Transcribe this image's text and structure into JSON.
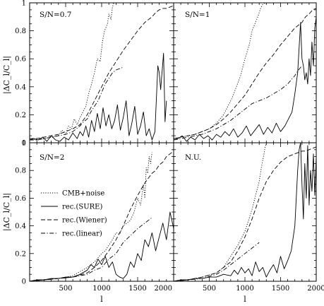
{
  "chart_data": [
    {
      "type": "line",
      "panel": "top-left",
      "label": "S/N=0.7",
      "xlim": [
        0,
        2000
      ],
      "ylim": [
        0,
        1
      ],
      "ylabel": "|ΔC_l/C_l|",
      "xticks": [],
      "yticks": [
        "0",
        "0.2",
        "0.4",
        "0.6",
        "0.8",
        "1"
      ],
      "series": [
        {
          "name": "CMB+noise",
          "style": "dotted",
          "x": [
            0,
            100,
            200,
            300,
            400,
            450,
            500,
            540,
            580,
            620,
            660,
            700,
            740,
            780,
            820,
            860,
            900,
            940,
            980,
            1010,
            1040,
            1080,
            1100,
            1130,
            1150,
            1170
          ],
          "y": [
            0.03,
            0.02,
            0.03,
            0.04,
            0.05,
            0.09,
            0.06,
            0.12,
            0.1,
            0.17,
            0.13,
            0.18,
            0.22,
            0.26,
            0.35,
            0.42,
            0.5,
            0.6,
            0.58,
            0.72,
            0.8,
            0.85,
            0.92,
            0.88,
            0.97,
            1.0
          ]
        },
        {
          "name": "rec.(SURE)",
          "style": "solid",
          "x": [
            0,
            60,
            120,
            180,
            240,
            300,
            360,
            420,
            480,
            540,
            600,
            660,
            700,
            740,
            780,
            820,
            860,
            900,
            940,
            980,
            1020,
            1060,
            1100,
            1140,
            1180,
            1220,
            1260,
            1300,
            1340,
            1380,
            1420,
            1460,
            1500,
            1540,
            1580,
            1620,
            1660,
            1700,
            1740,
            1780,
            1800,
            1820,
            1860,
            1880,
            1900
          ],
          "y": [
            0.02,
            0.03,
            0.02,
            0.04,
            0.01,
            0.05,
            0.02,
            0.01,
            0.04,
            0.02,
            0.07,
            0.03,
            0.08,
            0.05,
            0.12,
            0.04,
            0.16,
            0.08,
            0.21,
            0.1,
            0.25,
            0.12,
            0.2,
            0.1,
            0.16,
            0.27,
            0.09,
            0.18,
            0.3,
            0.05,
            0.14,
            0.26,
            0.06,
            0.12,
            0.22,
            0.05,
            0.1,
            0.02,
            0.08,
            0.55,
            0.5,
            0.38,
            0.64,
            0.15,
            0.3
          ]
        },
        {
          "name": "rec.(Wiener)",
          "style": "dashed",
          "x": [
            0,
            100,
            200,
            300,
            400,
            500,
            600,
            700,
            800,
            900,
            1000,
            1100,
            1200,
            1300,
            1400,
            1500,
            1600,
            1700,
            1750,
            1800,
            1850,
            1900,
            1950,
            2000
          ],
          "y": [
            0.03,
            0.03,
            0.04,
            0.05,
            0.06,
            0.08,
            0.1,
            0.13,
            0.2,
            0.3,
            0.4,
            0.5,
            0.58,
            0.66,
            0.73,
            0.8,
            0.86,
            0.9,
            0.93,
            0.95,
            0.96,
            0.96,
            0.97,
            0.98
          ]
        },
        {
          "name": "rec.(linear)",
          "style": "dashdot",
          "x": [
            0,
            100,
            200,
            300,
            400,
            500,
            600,
            650,
            700,
            750,
            800,
            850,
            900,
            950,
            1000,
            1050,
            1100,
            1150,
            1200,
            1250,
            1300
          ],
          "y": [
            0.02,
            0.02,
            0.03,
            0.04,
            0.05,
            0.06,
            0.08,
            0.1,
            0.12,
            0.15,
            0.17,
            0.22,
            0.26,
            0.3,
            0.36,
            0.42,
            0.46,
            0.5,
            0.52,
            0.53,
            0.54
          ]
        }
      ]
    },
    {
      "type": "line",
      "panel": "top-right",
      "label": "S/N=1",
      "xlim": [
        0,
        2000
      ],
      "ylim": [
        0,
        1
      ],
      "xticks": [],
      "yticks": [],
      "series": [
        {
          "name": "CMB+noise",
          "style": "dotted",
          "x": [
            0,
            100,
            200,
            300,
            400,
            500,
            600,
            700,
            760,
            820,
            880,
            940,
            1000,
            1060,
            1100,
            1140,
            1180,
            1220,
            1250,
            1280
          ],
          "y": [
            0.03,
            0.04,
            0.05,
            0.06,
            0.08,
            0.1,
            0.14,
            0.2,
            0.26,
            0.32,
            0.4,
            0.48,
            0.6,
            0.7,
            0.8,
            0.85,
            0.9,
            0.96,
            0.99,
            1.0
          ]
        },
        {
          "name": "rec.(SURE)",
          "style": "solid",
          "x": [
            0,
            60,
            120,
            180,
            240,
            300,
            360,
            420,
            480,
            540,
            600,
            660,
            720,
            780,
            840,
            900,
            960,
            1020,
            1080,
            1140,
            1200,
            1260,
            1320,
            1380,
            1440,
            1500,
            1560,
            1620,
            1660,
            1700,
            1740,
            1780,
            1800,
            1820,
            1840,
            1860,
            1880,
            1900,
            1920,
            1940,
            1960,
            1980,
            2000
          ],
          "y": [
            0.02,
            0.03,
            0.05,
            0.01,
            0.04,
            0.02,
            0.06,
            0.03,
            0.05,
            0.02,
            0.06,
            0.04,
            0.08,
            0.05,
            0.1,
            0.04,
            0.07,
            0.12,
            0.05,
            0.09,
            0.13,
            0.06,
            0.11,
            0.07,
            0.14,
            0.08,
            0.12,
            0.18,
            0.22,
            0.35,
            0.5,
            0.86,
            0.6,
            0.55,
            0.45,
            0.5,
            0.42,
            0.6,
            0.48,
            0.72,
            0.55,
            0.82,
            0.9
          ]
        },
        {
          "name": "rec.(Wiener)",
          "style": "dashed",
          "x": [
            0,
            100,
            200,
            300,
            400,
            500,
            600,
            700,
            800,
            900,
            1000,
            1100,
            1200,
            1300,
            1400,
            1500,
            1600,
            1700,
            1800,
            1850,
            1900,
            1950,
            2000
          ],
          "y": [
            0.03,
            0.04,
            0.05,
            0.06,
            0.08,
            0.1,
            0.13,
            0.17,
            0.22,
            0.28,
            0.34,
            0.42,
            0.5,
            0.57,
            0.63,
            0.7,
            0.76,
            0.82,
            0.86,
            0.9,
            0.92,
            0.95,
            0.96
          ]
        },
        {
          "name": "rec.(linear)",
          "style": "dashdot",
          "x": [
            0,
            100,
            200,
            300,
            400,
            500,
            600,
            700,
            800,
            900,
            1000,
            1100,
            1200,
            1300,
            1400,
            1500,
            1600,
            1700,
            1750,
            1800
          ],
          "y": [
            0.02,
            0.03,
            0.04,
            0.05,
            0.06,
            0.08,
            0.1,
            0.13,
            0.16,
            0.2,
            0.24,
            0.28,
            0.3,
            0.32,
            0.35,
            0.38,
            0.42,
            0.48,
            0.52,
            0.55
          ]
        }
      ]
    },
    {
      "type": "line",
      "panel": "bottom-left",
      "label": "S/N=2",
      "xlim": [
        0,
        2000
      ],
      "ylim": [
        0,
        1
      ],
      "xlabel": "l",
      "ylabel": "|ΔC_l/C_l|",
      "xticks": [
        "500",
        "1000",
        "1500",
        "2000"
      ],
      "yticks": [
        "0",
        "0.2",
        "0.4",
        "0.6",
        "0.8",
        "1"
      ],
      "series": [
        {
          "name": "CMB+noise",
          "style": "dotted",
          "x": [
            0,
            200,
            400,
            600,
            800,
            900,
            1000,
            1050,
            1100,
            1150,
            1200,
            1250,
            1300,
            1350,
            1400,
            1450,
            1500,
            1540,
            1580,
            1600,
            1620,
            1640,
            1660,
            1680,
            1700
          ],
          "y": [
            0.0,
            0.01,
            0.02,
            0.04,
            0.1,
            0.14,
            0.2,
            0.22,
            0.26,
            0.3,
            0.35,
            0.34,
            0.4,
            0.42,
            0.44,
            0.5,
            0.6,
            0.55,
            0.7,
            0.6,
            0.82,
            0.78,
            0.9,
            0.85,
            0.93
          ]
        },
        {
          "name": "rec.(SURE)",
          "style": "solid",
          "x": [
            0,
            100,
            200,
            300,
            400,
            500,
            600,
            700,
            800,
            850,
            900,
            950,
            1000,
            1050,
            1100,
            1150,
            1200,
            1250,
            1300,
            1350,
            1400,
            1450,
            1500,
            1550,
            1600,
            1650,
            1700,
            1750,
            1800,
            1850,
            1900,
            1950,
            2000
          ],
          "y": [
            0.0,
            0.01,
            0.01,
            0.02,
            0.02,
            0.03,
            0.03,
            0.05,
            0.08,
            0.12,
            0.1,
            0.16,
            0.12,
            0.18,
            0.1,
            0.14,
            0.05,
            0.03,
            0.02,
            0.05,
            0.14,
            0.1,
            0.2,
            0.15,
            0.3,
            0.25,
            0.35,
            0.22,
            0.32,
            0.42,
            0.3,
            0.5,
            0.38
          ]
        },
        {
          "name": "rec.(Wiener)",
          "style": "dashed",
          "x": [
            0,
            200,
            400,
            600,
            800,
            900,
            1000,
            1100,
            1200,
            1300,
            1400,
            1500,
            1600,
            1700,
            1750,
            1800,
            1850,
            1900,
            1950,
            2000
          ],
          "y": [
            0.0,
            0.01,
            0.02,
            0.03,
            0.06,
            0.1,
            0.15,
            0.22,
            0.3,
            0.4,
            0.52,
            0.62,
            0.71,
            0.78,
            0.8,
            0.84,
            0.86,
            0.9,
            0.92,
            0.94
          ]
        },
        {
          "name": "rec.(linear)",
          "style": "dashdot",
          "x": [
            0,
            200,
            400,
            600,
            800,
            900,
            1000,
            1100,
            1200,
            1300,
            1400,
            1500,
            1600,
            1700
          ],
          "y": [
            0.0,
            0.01,
            0.02,
            0.03,
            0.05,
            0.08,
            0.1,
            0.16,
            0.2,
            0.28,
            0.33,
            0.38,
            0.42,
            0.46
          ]
        }
      ],
      "legend": {
        "placement": "center-left",
        "entries": [
          "CMB+noise",
          "rec.(SURE)",
          "rec.(Wiener)",
          "rec.(linear)"
        ]
      }
    },
    {
      "type": "line",
      "panel": "bottom-right",
      "label": "N.U.",
      "xlim": [
        0,
        2000
      ],
      "ylim": [
        0,
        1
      ],
      "xlabel": "l",
      "xticks": [
        "500",
        "1000",
        "1500",
        "2000"
      ],
      "yticks": [],
      "series": [
        {
          "name": "CMB+noise",
          "style": "dotted",
          "x": [
            0,
            200,
            400,
            600,
            700,
            800,
            900,
            1000,
            1050,
            1100,
            1150,
            1200,
            1230,
            1260,
            1280,
            1300
          ],
          "y": [
            0.0,
            0.01,
            0.03,
            0.06,
            0.1,
            0.18,
            0.26,
            0.36,
            0.44,
            0.52,
            0.62,
            0.72,
            0.82,
            0.9,
            0.96,
            1.0
          ]
        },
        {
          "name": "rec.(SURE)",
          "style": "solid",
          "x": [
            0,
            100,
            200,
            300,
            400,
            500,
            600,
            700,
            800,
            850,
            900,
            950,
            1000,
            1050,
            1100,
            1150,
            1200,
            1250,
            1300,
            1350,
            1400,
            1450,
            1500,
            1550,
            1600,
            1650,
            1700,
            1720,
            1740,
            1760,
            1780,
            1800,
            1820,
            1840,
            1860,
            1880,
            1900,
            1920,
            1940,
            1960,
            1980,
            2000
          ],
          "y": [
            0.0,
            0.01,
            0.01,
            0.02,
            0.02,
            0.03,
            0.03,
            0.05,
            0.04,
            0.08,
            0.05,
            0.1,
            0.06,
            0.09,
            0.04,
            0.14,
            0.07,
            0.1,
            0.03,
            0.08,
            0.12,
            0.06,
            0.18,
            0.09,
            0.15,
            0.22,
            0.4,
            0.6,
            0.8,
            0.95,
            1.0,
            0.7,
            0.45,
            0.85,
            0.6,
            0.98,
            0.55,
            0.8,
            0.65,
            0.92,
            0.62,
            0.9
          ]
        },
        {
          "name": "rec.(Wiener)",
          "style": "dashed",
          "x": [
            0,
            200,
            400,
            600,
            800,
            900,
            1000,
            1100,
            1200,
            1300,
            1400,
            1500,
            1600,
            1700,
            1800,
            1850,
            1900,
            1950,
            2000
          ],
          "y": [
            0.0,
            0.01,
            0.03,
            0.06,
            0.14,
            0.22,
            0.32,
            0.45,
            0.6,
            0.72,
            0.8,
            0.86,
            0.9,
            0.92,
            0.94,
            0.94,
            0.95,
            0.96,
            0.97
          ]
        },
        {
          "name": "rec.(linear)",
          "style": "dashdot",
          "x": [
            0,
            200,
            400,
            600,
            700,
            800,
            900,
            1000,
            1100,
            1200
          ],
          "y": [
            0.0,
            0.01,
            0.02,
            0.05,
            0.08,
            0.12,
            0.16,
            0.2,
            0.24,
            0.28
          ]
        }
      ]
    }
  ]
}
